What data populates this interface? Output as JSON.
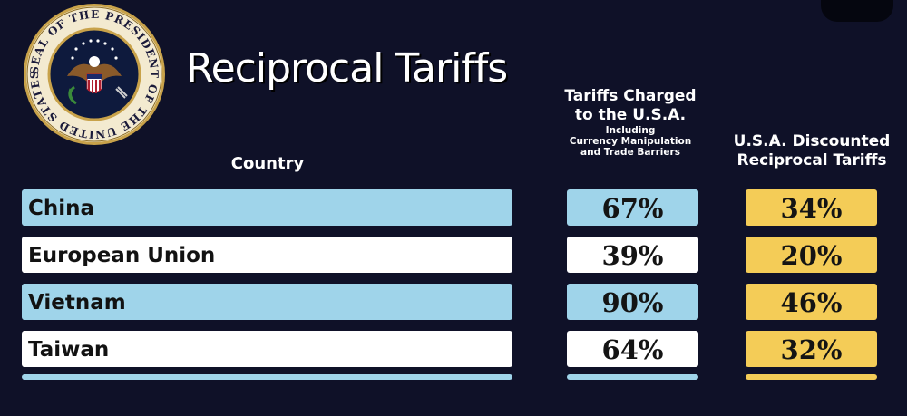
{
  "header": {
    "title": "Reciprocal Tariffs",
    "seal_text": "SEAL OF THE PRESIDENT OF THE UNITED STATES"
  },
  "columns": {
    "country": "Country",
    "charged_line1": "Tariffs Charged",
    "charged_line2": "to the U.S.A.",
    "charged_sub1": "Including",
    "charged_sub2": "Currency Manipulation",
    "charged_sub3": "and Trade Barriers",
    "discounted_line1": "U.S.A. Discounted",
    "discounted_line2": "Reciprocal Tariffs"
  },
  "rows": [
    {
      "country": "China",
      "charged": "67%",
      "discounted": "34%"
    },
    {
      "country": "European Union",
      "charged": "39%",
      "discounted": "20%"
    },
    {
      "country": "Vietnam",
      "charged": "90%",
      "discounted": "46%"
    },
    {
      "country": "Taiwan",
      "charged": "64%",
      "discounted": "32%"
    }
  ],
  "colors": {
    "background": "#0f1128",
    "row_blue": "#9fd4ea",
    "row_white": "#ffffff",
    "discount_yellow": "#f4cc57"
  }
}
